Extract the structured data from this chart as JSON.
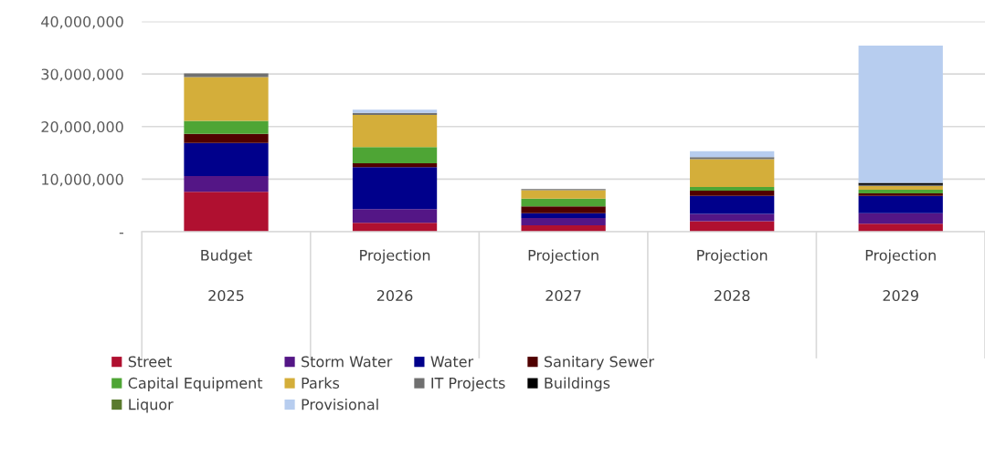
{
  "chart_data": {
    "type": "bar",
    "stacked": true,
    "categories": [
      "Budget\n\n2025",
      "Projection\n\n2026",
      "Projection\n\n2027",
      "Projection\n\n2028",
      "Projection\n\n2029"
    ],
    "series": [
      {
        "name": "Street",
        "color": "#b01030",
        "values": [
          7600000,
          1700000,
          1200000,
          2000000,
          1500000
        ]
      },
      {
        "name": "Storm Water",
        "color": "#541686",
        "values": [
          3000000,
          2600000,
          1400000,
          1400000,
          2000000
        ]
      },
      {
        "name": "Water",
        "color": "#00008b",
        "values": [
          6300000,
          8000000,
          900000,
          3400000,
          3300000
        ]
      },
      {
        "name": "Sanitary Sewer",
        "color": "#500000",
        "values": [
          1700000,
          700000,
          1300000,
          1000000,
          500000
        ]
      },
      {
        "name": "Capital Equipment",
        "color": "#4ea535",
        "values": [
          2500000,
          3100000,
          1500000,
          700000,
          700000
        ]
      },
      {
        "name": "Parks",
        "color": "#d4ae3a",
        "values": [
          8300000,
          6100000,
          1600000,
          5300000,
          700000
        ]
      },
      {
        "name": "IT Projects",
        "color": "#707070",
        "values": [
          700000,
          400000,
          200000,
          400000,
          200000
        ]
      },
      {
        "name": "Buildings",
        "color": "#000000",
        "values": [
          0,
          0,
          0,
          0,
          400000
        ]
      },
      {
        "name": "Liquor",
        "color": "#5a7a2e",
        "values": [
          0,
          0,
          0,
          0,
          0
        ]
      },
      {
        "name": "Provisional",
        "color": "#b7cdef",
        "values": [
          0,
          600000,
          0,
          1100000,
          26100000
        ]
      }
    ],
    "ylim": [
      0,
      40000000
    ],
    "yticks": [
      {
        "value": 0,
        "label": "-"
      },
      {
        "value": 10000000,
        "label": "10,000,000"
      },
      {
        "value": 20000000,
        "label": "20,000,000"
      },
      {
        "value": 30000000,
        "label": "30,000,000"
      },
      {
        "value": 40000000,
        "label": "40,000,000"
      }
    ],
    "grid": "y",
    "legend": "bottom"
  }
}
